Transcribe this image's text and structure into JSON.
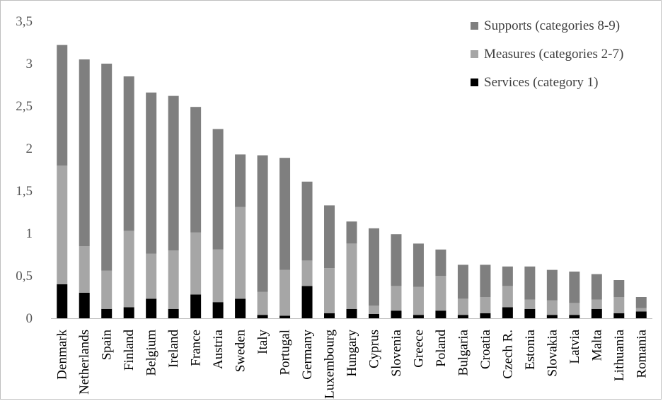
{
  "chart_data": {
    "type": "bar",
    "stacked": true,
    "categories": [
      "Denmark",
      "Netherlands",
      "Spain",
      "Finland",
      "Belgium",
      "Ireland",
      "France",
      "Austria",
      "Sweden",
      "Italy",
      "Portugal",
      "Germany",
      "Luxembourg",
      "Hungary",
      "Cyprus",
      "Slovenia",
      "Greece",
      "Poland",
      "Bulgaria",
      "Croatia",
      "Czech R.",
      "Estonia",
      "Slovakia",
      "Latvia",
      "Malta",
      "Lithuania",
      "Romania"
    ],
    "series": [
      {
        "name": "Services (category 1)",
        "color": "#000000",
        "values": [
          0.4,
          0.3,
          0.11,
          0.13,
          0.23,
          0.11,
          0.28,
          0.19,
          0.23,
          0.04,
          0.03,
          0.38,
          0.06,
          0.11,
          0.05,
          0.09,
          0.04,
          0.09,
          0.04,
          0.06,
          0.13,
          0.11,
          0.04,
          0.04,
          0.11,
          0.06,
          0.08
        ]
      },
      {
        "name": "Measures (categories 2-7)",
        "color": "#a6a6a6",
        "values": [
          1.4,
          0.55,
          0.45,
          0.9,
          0.53,
          0.69,
          0.73,
          0.62,
          1.08,
          0.27,
          0.54,
          0.3,
          0.53,
          0.77,
          0.1,
          0.29,
          0.33,
          0.41,
          0.19,
          0.19,
          0.25,
          0.11,
          0.17,
          0.14,
          0.11,
          0.19,
          0.04
        ]
      },
      {
        "name": "Supports (categories 8-9)",
        "color": "#7f7f7f",
        "values": [
          1.42,
          2.2,
          2.44,
          1.82,
          1.9,
          1.82,
          1.48,
          1.42,
          0.62,
          1.61,
          1.32,
          0.93,
          0.74,
          0.26,
          0.91,
          0.61,
          0.51,
          0.31,
          0.4,
          0.38,
          0.23,
          0.39,
          0.36,
          0.37,
          0.3,
          0.2,
          0.13
        ]
      }
    ],
    "ylim": [
      0,
      3.5
    ],
    "yticks": [
      "0",
      "0,5",
      "1",
      "1,5",
      "2",
      "2,5",
      "3",
      "3,5"
    ],
    "legend_order": [
      "Supports (categories 8-9)",
      "Measures (categories 2-7)",
      "Services (category 1)"
    ],
    "legend_placement": "top-right",
    "grid": false
  }
}
